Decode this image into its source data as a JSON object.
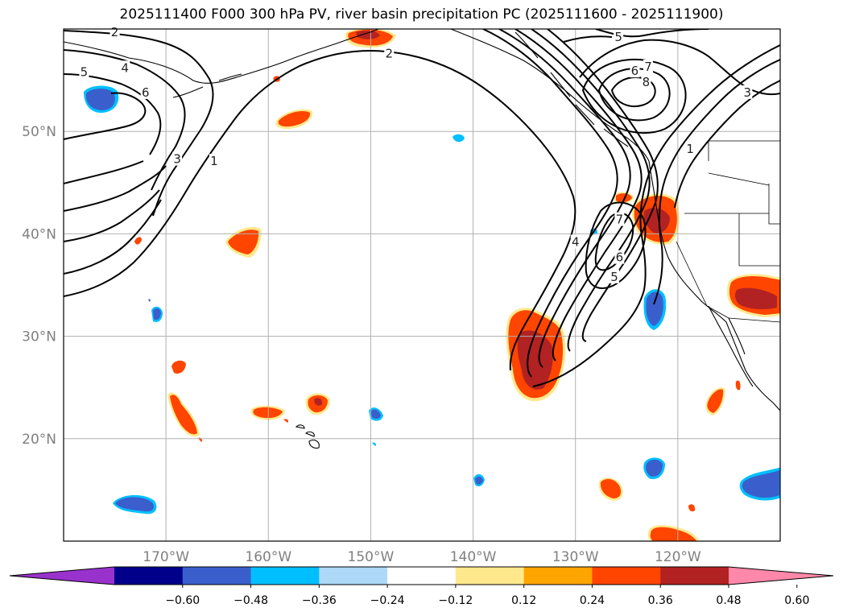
{
  "title": "2025111400 F000 300 hPa PV, river basin precipitation PC (2025111600 - 2025111900)",
  "map": {
    "lon_range": [
      -180,
      -110
    ],
    "lat_range": [
      10,
      60
    ],
    "lon_ticks": [
      {
        "value": -170,
        "label": "170°W"
      },
      {
        "value": -160,
        "label": "160°W"
      },
      {
        "value": -150,
        "label": "150°W"
      },
      {
        "value": -140,
        "label": "140°W"
      },
      {
        "value": -130,
        "label": "130°W"
      },
      {
        "value": -120,
        "label": "120°W"
      }
    ],
    "lat_ticks": [
      {
        "value": 50,
        "label": "50°N"
      },
      {
        "value": 40,
        "label": "40°N"
      },
      {
        "value": 30,
        "label": "30°N"
      },
      {
        "value": 20,
        "label": "20°N"
      }
    ],
    "grid": true
  },
  "pv_contour_labels": [
    {
      "text": "2",
      "lon": -175.0,
      "lat": 59.7
    },
    {
      "text": "5",
      "lon": -178.0,
      "lat": 55.8
    },
    {
      "text": "4",
      "lon": -174.0,
      "lat": 56.2
    },
    {
      "text": "6",
      "lon": -172.0,
      "lat": 53.8
    },
    {
      "text": "3",
      "lon": -168.9,
      "lat": 47.3
    },
    {
      "text": "1",
      "lon": -165.3,
      "lat": 47.1
    },
    {
      "text": "2",
      "lon": -148.2,
      "lat": 57.6
    },
    {
      "text": "5",
      "lon": -125.8,
      "lat": 59.2
    },
    {
      "text": "6",
      "lon": -124.2,
      "lat": 55.9
    },
    {
      "text": "7",
      "lon": -122.9,
      "lat": 56.3
    },
    {
      "text": "8",
      "lon": -123.1,
      "lat": 54.8
    },
    {
      "text": "3",
      "lon": -113.2,
      "lat": 53.8
    },
    {
      "text": "1",
      "lon": -118.8,
      "lat": 48.3
    },
    {
      "text": "4",
      "lon": -130.0,
      "lat": 39.2
    },
    {
      "text": "7",
      "lon": -125.7,
      "lat": 41.4
    },
    {
      "text": "6",
      "lon": -125.7,
      "lat": 37.7
    },
    {
      "text": "5",
      "lon": -126.2,
      "lat": 35.8
    }
  ],
  "colorbar": {
    "ticks": [
      "−0.60",
      "−0.48",
      "−0.36",
      "−0.24",
      "−0.12",
      "0.12",
      "0.24",
      "0.36",
      "0.48",
      "0.60"
    ],
    "colors": [
      "#9932cc",
      "#00008b",
      "#3a5fcd",
      "#00bfff",
      "#add8f7",
      "#ffffff",
      "#ffe98c",
      "#ffa500",
      "#ff4500",
      "#b22222",
      "#ff88aa"
    ],
    "extend": "both"
  }
}
